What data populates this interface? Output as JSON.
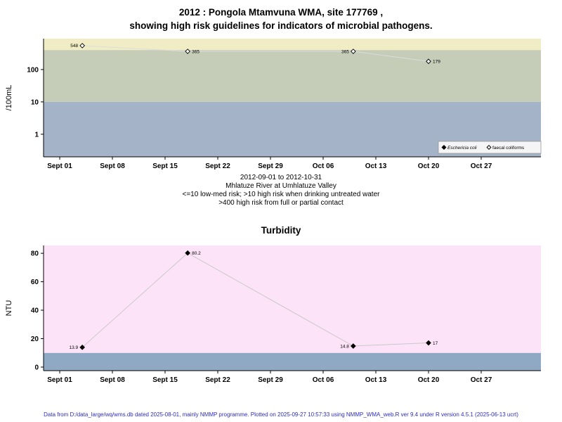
{
  "header": {
    "title_line1": "2012 : Pongola Mtamvuna WMA, site 177769 ,",
    "title_line2": "showing high risk guidelines for indicators of microbial pathogens."
  },
  "captions": [
    "2012-09-01 to 2012-10-31",
    "Mhlatuze River at Umhlatuze Valley",
    "<=10 low-med risk; >10 high risk when drinking untreated water",
    ">400 high risk from full or partial contact"
  ],
  "footer": {
    "text": "Data from D:/data_large/wq/wms.db dated 2025-08-01, mainly NMMP programme. Plotted on 2025-09-27 10:57:33 using NMMP_WMA_web.R ver 9.4 under R version 4.5.1 (2025-06-13 ucrt)"
  },
  "chart_data": [
    {
      "type": "scatter",
      "title": "2012 : Pongola Mtamvuna WMA, site 177769, showing high risk guidelines for indicators of microbial pathogens",
      "xlabel": "",
      "ylabel": "/100mL",
      "y_scale": "log",
      "y_ticks": [
        100,
        10,
        1
      ],
      "ylim": [
        0.2,
        900
      ],
      "x_range": [
        "2012-09-01",
        "2012-10-31"
      ],
      "x_ticks": [
        "Sept 01",
        "Sept 08",
        "Sept 15",
        "Sept 22",
        "Sept 29",
        "Oct 06",
        "Oct 13",
        "Oct 20",
        "Oct 27"
      ],
      "x_tick_days": [
        0,
        7,
        14,
        21,
        28,
        35,
        42,
        49,
        56
      ],
      "grid": false,
      "legend_position": "bottom-right",
      "bands": [
        {
          "name": "high-risk-contact",
          "from": 400,
          "to": 900,
          "color": "#f0edc4"
        },
        {
          "name": "high-risk-drinking",
          "from": 10,
          "to": 400,
          "color": "#c5ccb8"
        },
        {
          "name": "low-med-risk",
          "from": 0.2,
          "to": 10,
          "color": "#a4b3c7"
        }
      ],
      "legend": [
        {
          "label": "Eschericia coli",
          "marker": "filled-diamond"
        },
        {
          "label": "faecal coliforms",
          "marker": "open-diamond"
        }
      ],
      "series": [
        {
          "name": "faecal coliforms",
          "marker": "open-diamond",
          "points": [
            {
              "day": 3,
              "date": "2012-09-04",
              "value": 548,
              "label": "548",
              "label_side": "left"
            },
            {
              "day": 17,
              "date": "2012-09-18",
              "value": 365,
              "label": "365",
              "label_side": "right"
            },
            {
              "day": 39,
              "date": "2012-10-10",
              "value": 365,
              "label": "365",
              "label_side": "left"
            },
            {
              "day": 49,
              "date": "2012-10-20",
              "value": 179,
              "label": "179",
              "label_side": "right"
            }
          ]
        }
      ]
    },
    {
      "type": "line",
      "title": "Turbidity",
      "xlabel": "",
      "ylabel": "NTU",
      "y_scale": "linear",
      "y_ticks": [
        0,
        20,
        40,
        60,
        80
      ],
      "ylim": [
        -2.5,
        85.5
      ],
      "x_range": [
        "2012-09-01",
        "2012-10-31"
      ],
      "x_ticks": [
        "Sept 01",
        "Sept 08",
        "Sept 15",
        "Sept 22",
        "Sept 29",
        "Oct 06",
        "Oct 13",
        "Oct 20",
        "Oct 27"
      ],
      "x_tick_days": [
        0,
        7,
        14,
        21,
        28,
        35,
        42,
        49,
        56
      ],
      "grid": false,
      "bands": [
        {
          "name": "low-turbidity",
          "from": -2.5,
          "to": 10,
          "color": "#8fa9c5"
        },
        {
          "name": "high-turbidity",
          "from": 10,
          "to": 85.5,
          "color": "#fce3f8"
        }
      ],
      "series": [
        {
          "name": "Turbidity",
          "marker": "filled-diamond",
          "points": [
            {
              "day": 3,
              "date": "2012-09-04",
              "value": 13.9,
              "label": "13.9",
              "label_side": "left"
            },
            {
              "day": 17,
              "date": "2012-09-18",
              "value": 80.2,
              "label": "80.2",
              "label_side": "right"
            },
            {
              "day": 39,
              "date": "2012-10-10",
              "value": 14.8,
              "label": "14.8",
              "label_side": "left"
            },
            {
              "day": 49,
              "date": "2012-10-20",
              "value": 17,
              "label": "17",
              "label_side": "right"
            }
          ]
        }
      ]
    }
  ]
}
